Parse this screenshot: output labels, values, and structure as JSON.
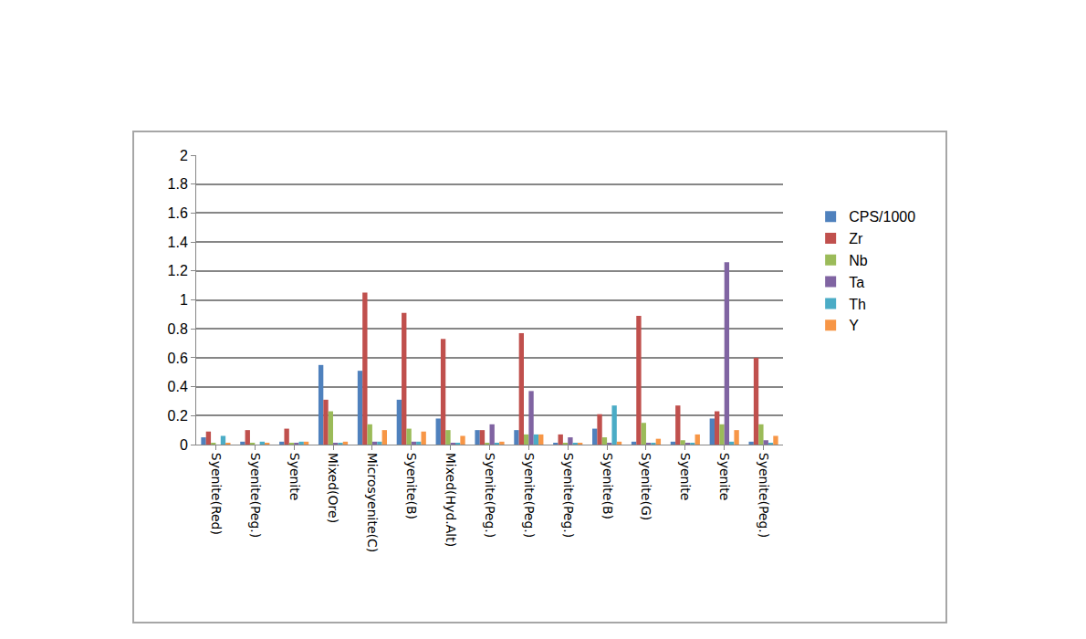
{
  "chart_data": {
    "type": "bar",
    "categories": [
      "Syenite(Red)",
      "Syenite(Peg.)",
      "Syenite",
      "Mixed(Ore)",
      "Microsyenite(C)",
      "Syenite(B)",
      "Mixed(Hyd.Alt)",
      "Syenite(Peg.)",
      "Syenite(Peg.)",
      "Syenite(Peg.)",
      "Syenite(B)",
      "Syenite(G)",
      "Syenite",
      "Syenite",
      "Syenite(Peg.)"
    ],
    "series": [
      {
        "name": "CPS/1000",
        "color": "#4f81bd",
        "values": [
          0.05,
          0.02,
          0.02,
          0.55,
          0.51,
          0.31,
          0.18,
          0.1,
          0.1,
          0.01,
          0.11,
          0.02,
          0.02,
          0.18,
          0.02
        ]
      },
      {
        "name": "Zr",
        "color": "#c0504d",
        "values": [
          0.09,
          0.1,
          0.11,
          0.31,
          1.05,
          0.91,
          0.73,
          0.1,
          0.77,
          0.07,
          0.21,
          0.89,
          0.27,
          0.23,
          0.6
        ]
      },
      {
        "name": "Nb",
        "color": "#9bbb59",
        "values": [
          0.01,
          0.01,
          0.01,
          0.23,
          0.14,
          0.11,
          0.1,
          0.01,
          0.07,
          0.01,
          0.05,
          0.15,
          0.03,
          0.14,
          0.14
        ]
      },
      {
        "name": "Ta",
        "color": "#8064a2",
        "values": [
          0.0,
          0.0,
          0.01,
          0.01,
          0.02,
          0.02,
          0.01,
          0.14,
          0.37,
          0.05,
          0.01,
          0.01,
          0.01,
          1.26,
          0.03
        ]
      },
      {
        "name": "Th",
        "color": "#4bacc6",
        "values": [
          0.06,
          0.02,
          0.02,
          0.01,
          0.02,
          0.02,
          0.01,
          0.01,
          0.07,
          0.01,
          0.27,
          0.01,
          0.01,
          0.02,
          0.01
        ]
      },
      {
        "name": "Y",
        "color": "#f79646",
        "values": [
          0.01,
          0.01,
          0.02,
          0.02,
          0.1,
          0.09,
          0.06,
          0.02,
          0.07,
          0.01,
          0.02,
          0.04,
          0.07,
          0.1,
          0.06
        ]
      }
    ],
    "ylim": [
      0,
      2
    ],
    "yticks": [
      0,
      0.2,
      0.4,
      0.6,
      0.8,
      1,
      1.2,
      1.4,
      1.6,
      1.8,
      2
    ],
    "grid": true,
    "legend": "right"
  }
}
